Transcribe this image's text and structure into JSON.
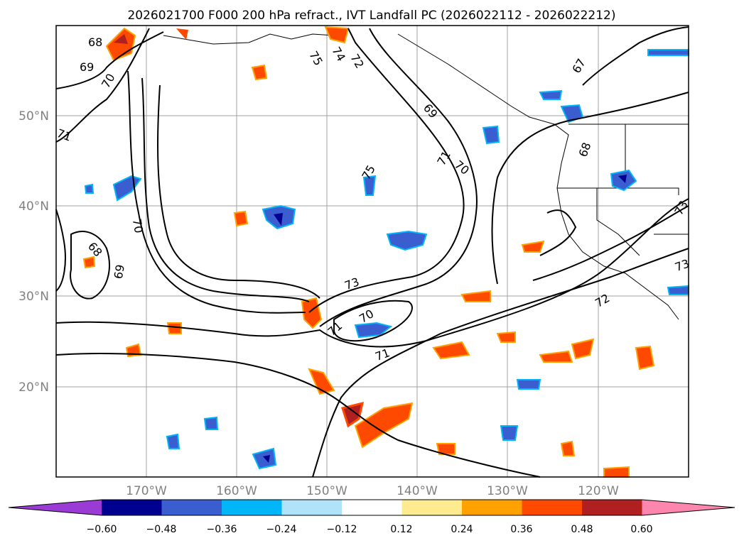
{
  "title": "2026021700 F000 200 hPa refract., IVT Landfall PC (2026022112 - 2026022212)",
  "map": {
    "lat_labels": [
      "50°N",
      "40°N",
      "30°N",
      "20°N"
    ],
    "lon_labels": [
      "170°W",
      "160°W",
      "150°W",
      "140°W",
      "130°W",
      "120°W"
    ],
    "contour_labels": [
      "68",
      "69",
      "70",
      "71",
      "75",
      "74",
      "72",
      "67",
      "69",
      "71",
      "70",
      "68",
      "75",
      "70",
      "68",
      "69",
      "73",
      "71",
      "70",
      "71",
      "72",
      "73",
      "73"
    ]
  },
  "colorbar": {
    "tick_labels": [
      "−0.60",
      "−0.48",
      "−0.36",
      "−0.24",
      "−0.12",
      "0.12",
      "0.24",
      "0.36",
      "0.48",
      "0.60"
    ],
    "colors": [
      "#9a3bd6",
      "#000090",
      "#3a5ed0",
      "#00b6f8",
      "#b0e2fa",
      "#ffffff",
      "#feeb90",
      "#ffa200",
      "#fe4900",
      "#b02020",
      "#fd86ae"
    ]
  }
}
